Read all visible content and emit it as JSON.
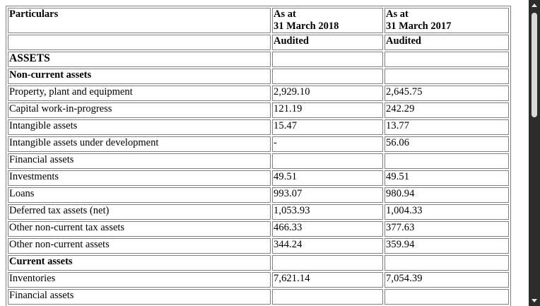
{
  "table": {
    "header": {
      "particulars": "Particulars",
      "col1_line1": "As at",
      "col1_line2": "31 March 2018",
      "col2_line1": "As at",
      "col2_line2": "31 March 2017",
      "col1_sub": "Audited",
      "col2_sub": "Audited"
    },
    "rows": [
      {
        "label": "ASSETS",
        "v2018": "",
        "v2017": ""
      },
      {
        "label": "Non-current assets",
        "v2018": "",
        "v2017": ""
      },
      {
        "label": "Property, plant and equipment",
        "v2018": "2,929.10",
        "v2017": "2,645.75"
      },
      {
        "label": "Capital work-in-progress",
        "v2018": "121.19",
        "v2017": "242.29"
      },
      {
        "label": "Intangible assets",
        "v2018": "15.47",
        "v2017": "13.77"
      },
      {
        "label": "Intangible assets under development",
        "v2018": "-",
        "v2017": "56.06"
      },
      {
        "label": "Financial assets",
        "v2018": "",
        "v2017": ""
      },
      {
        "label": "Investments",
        "v2018": "49.51",
        "v2017": "49.51"
      },
      {
        "label": "Loans",
        "v2018": "993.07",
        "v2017": "980.94"
      },
      {
        "label": "Deferred tax assets (net)",
        "v2018": "1,053.93",
        "v2017": "1,004.33"
      },
      {
        "label": "Other non-current tax assets",
        "v2018": "466.33",
        "v2017": "377.63"
      },
      {
        "label": "Other non-current assets",
        "v2018": "344.24",
        "v2017": "359.94"
      },
      {
        "label": "Current assets",
        "v2018": "",
        "v2017": ""
      },
      {
        "label": "Inventories",
        "v2018": "7,621.14",
        "v2017": "7,054.39"
      },
      {
        "label": "Financial assets",
        "v2018": "",
        "v2017": ""
      }
    ]
  }
}
